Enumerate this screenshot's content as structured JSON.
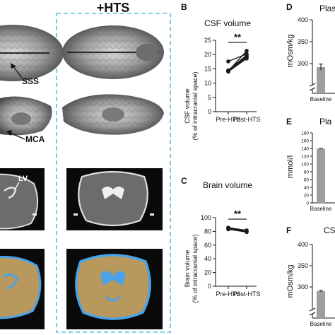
{
  "panel_a": {
    "group_label": "+HTS",
    "annotations": {
      "sss": "SSS",
      "mca": "MCA",
      "lv": "LV"
    }
  },
  "panel_b": {
    "letter": "B",
    "title": "CSF volume",
    "ylabel_line1": "CSF volume",
    "ylabel_line2": "(% of intracranial space)",
    "significance": "**"
  },
  "panel_c": {
    "letter": "C",
    "title": "Brain volume",
    "ylabel_line1": "Brain volume",
    "ylabel_line2": "(% of intracranial space)",
    "significance": "**"
  },
  "panel_d": {
    "letter": "D",
    "title_fragment": "Plas",
    "ylabel": "mOsm/kg",
    "xtick": "Baseline"
  },
  "panel_e": {
    "letter": "E",
    "title_fragment": "Pla",
    "ylabel": "mmol/l",
    "xtick": "Baseline"
  },
  "panel_f": {
    "letter": "F",
    "title_fragment": "CS",
    "ylabel": "mOsm/kg",
    "xtick": "Baseline"
  },
  "colors": {
    "hts_box": "#5bbfe0",
    "line_series": "#1a1a1a",
    "bar_fill": "#9e9e9e",
    "segment_brain": "#b8985c",
    "segment_csf": "#4aa3e8"
  },
  "chart_data": [
    {
      "type": "line",
      "panel": "B",
      "title": "CSF volume",
      "ylabel": "CSF volume (% of intracranial space)",
      "categories": [
        "Pre-HTS",
        "Post-HTS"
      ],
      "ylim": [
        0,
        25
      ],
      "yticks": [
        0,
        5,
        10,
        15,
        20,
        25
      ],
      "series": [
        {
          "values": [
            14.2,
            21.3
          ]
        },
        {
          "values": [
            17.6,
            20.2
          ]
        },
        {
          "values": [
            14.4,
            19.4
          ]
        },
        {
          "values": [
            14.0,
            18.6
          ]
        },
        {
          "values": [
            14.3,
            19.0
          ]
        },
        {
          "values": [
            14.5,
            19.8
          ]
        }
      ],
      "significance": "**"
    },
    {
      "type": "line",
      "panel": "C",
      "title": "Brain volume",
      "ylabel": "Brain volume (% of intracranial space)",
      "categories": [
        "Pre-HTS",
        "Post-HTS"
      ],
      "ylim": [
        0,
        100
      ],
      "yticks": [
        0,
        20,
        40,
        60,
        80,
        100
      ],
      "series": [
        {
          "values": [
            85.5,
            81.5
          ]
        },
        {
          "values": [
            84.3,
            80.2
          ]
        },
        {
          "values": [
            83.0,
            79.0
          ]
        },
        {
          "values": [
            84.0,
            80.5
          ]
        }
      ],
      "significance": "**"
    },
    {
      "type": "bar",
      "panel": "D",
      "ylabel": "mOsm/kg",
      "categories": [
        "Baseline"
      ],
      "values": [
        292
      ],
      "error": [
        7
      ],
      "yticks": [
        300,
        350,
        400
      ],
      "axis_break": true
    },
    {
      "type": "bar",
      "panel": "E",
      "ylabel": "mmol/l",
      "categories": [
        "Baseline"
      ],
      "values": [
        139
      ],
      "error": [
        1
      ],
      "ylim": [
        0,
        180
      ],
      "yticks": [
        0,
        20,
        40,
        60,
        80,
        100,
        120,
        140,
        160,
        180
      ]
    },
    {
      "type": "bar",
      "panel": "F",
      "ylabel": "mOsm/kg",
      "categories": [
        "Baseline"
      ],
      "values": [
        290
      ],
      "error": [
        2
      ],
      "yticks": [
        300,
        350,
        400
      ],
      "axis_break": true
    }
  ]
}
